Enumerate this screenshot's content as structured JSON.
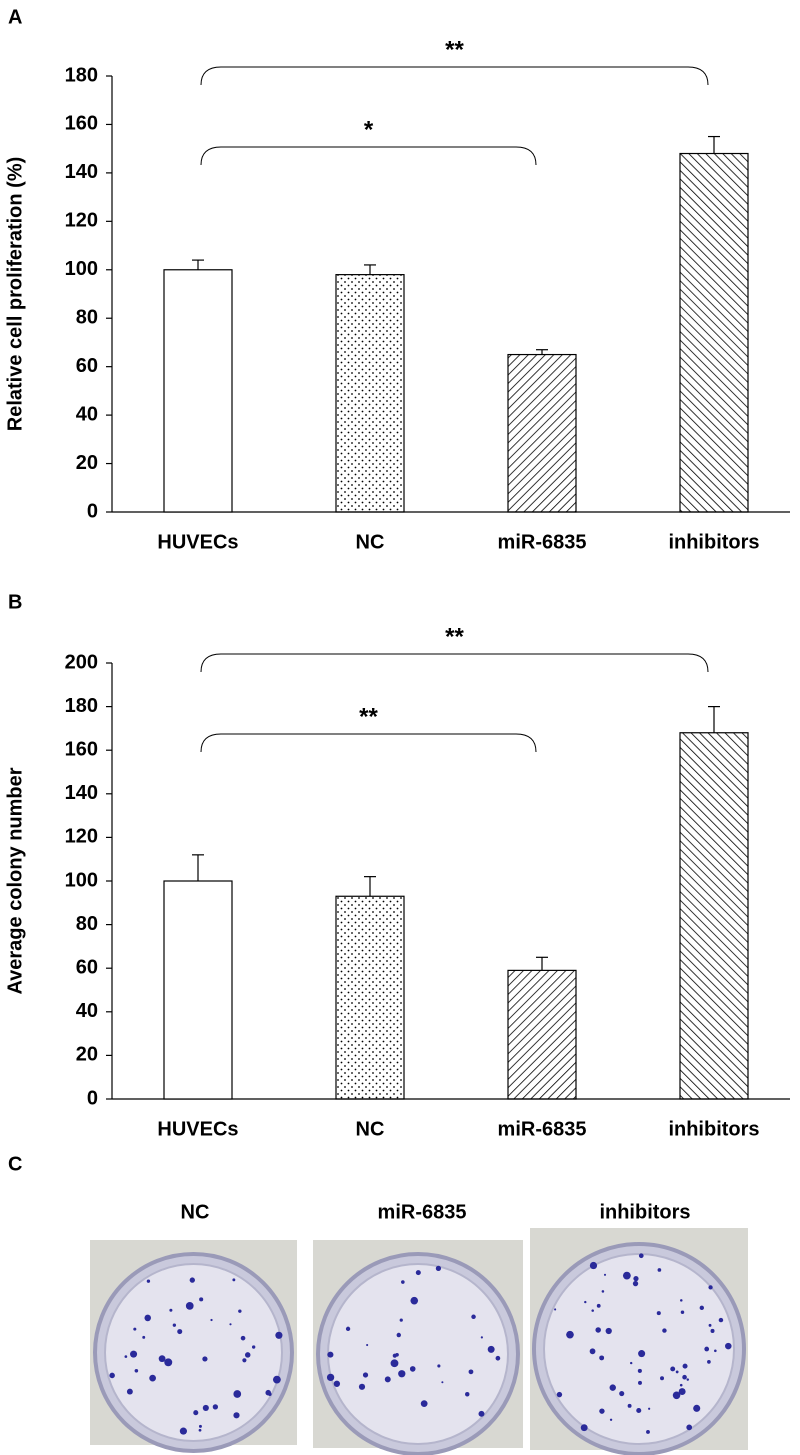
{
  "chart_data": [
    {
      "type": "bar",
      "panel": "A",
      "y_label": "Relative cell proliferation (%)",
      "categories": [
        "HUVECs",
        "NC",
        "miR-6835",
        "inhibitors"
      ],
      "values": [
        100,
        98,
        65,
        148
      ],
      "errors": [
        4,
        4,
        2,
        7
      ],
      "patterns": [
        "none",
        "dots",
        "hatch-right",
        "hatch-left"
      ],
      "color": "#000000",
      "ylim": [
        0,
        180
      ],
      "yticks": [
        0,
        20,
        40,
        60,
        80,
        100,
        120,
        140,
        160,
        180
      ],
      "annotations": [
        {
          "text": "**",
          "between": [
            "HUVECs",
            "inhibitors"
          ]
        },
        {
          "text": "*",
          "between": [
            "HUVECs",
            "miR-6835"
          ]
        }
      ]
    },
    {
      "type": "bar",
      "panel": "B",
      "y_label": "Average colony number",
      "categories": [
        "HUVECs",
        "NC",
        "miR-6835",
        "inhibitors"
      ],
      "values": [
        100,
        93,
        59,
        168
      ],
      "errors": [
        12,
        9,
        6,
        12
      ],
      "patterns": [
        "none",
        "dots",
        "hatch-right",
        "hatch-left"
      ],
      "color": "#000000",
      "ylim": [
        0,
        200
      ],
      "yticks": [
        0,
        20,
        40,
        60,
        80,
        100,
        120,
        140,
        160,
        180,
        200
      ],
      "annotations": [
        {
          "text": "**",
          "between": [
            "HUVECs",
            "inhibitors"
          ]
        },
        {
          "text": "**",
          "between": [
            "HUVECs",
            "miR-6835"
          ]
        }
      ]
    }
  ],
  "panel_c": {
    "label": "C",
    "titles": [
      "NC",
      "miR-6835",
      "inhibitors"
    ]
  }
}
